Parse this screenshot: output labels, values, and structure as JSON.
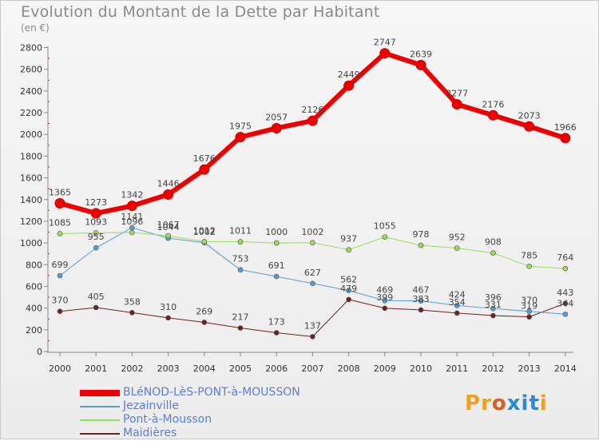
{
  "header": {
    "title": "Evolution du Montant de la Dette par Habitant",
    "unit": "(en €)"
  },
  "logo": {
    "text": "Proxiti",
    "letters": [
      "P",
      "r",
      "o",
      "x",
      "i",
      "t",
      "i"
    ],
    "colors": [
      "#f0a020",
      "#f0a020",
      "#e05a1a",
      "#2a8ad8",
      "#2a8ad8",
      "#2a8ad8",
      "#f0a020"
    ]
  },
  "chart_data": {
    "type": "line",
    "title": "Evolution du Montant de la Dette par Habitant",
    "ylabel": "(en €)",
    "xlabel": "",
    "x": [
      "2000",
      "2001",
      "2002",
      "2003",
      "2004",
      "2005",
      "2006",
      "2007",
      "2008",
      "2009",
      "2010",
      "2011",
      "2012",
      "2013",
      "2014"
    ],
    "ylim": [
      0,
      2800
    ],
    "yticks": [
      0,
      200,
      400,
      600,
      800,
      1000,
      1200,
      1400,
      1600,
      1800,
      2000,
      2200,
      2400,
      2600,
      2800
    ],
    "grid": false,
    "legend_position": "bottom-left",
    "series": [
      {
        "name": "BLéNOD-LèS-PONT-à-MOUSSON",
        "color": "#ee0000",
        "width": 6,
        "values": [
          1365,
          1273,
          1342,
          1446,
          1676,
          1975,
          2057,
          2126,
          2449,
          2747,
          2639,
          2277,
          2176,
          2073,
          1966
        ],
        "labels": [
          "1365",
          "1273",
          "1342",
          "1446",
          "1676",
          "1975",
          "2057",
          "2126",
          "2449",
          "2747",
          "2639",
          "2277",
          "2176",
          "2073",
          "1966"
        ]
      },
      {
        "name": "Jezainville",
        "color": "#5b9bd5",
        "width": 1,
        "values": [
          699,
          955,
          1141,
          1044,
          1002,
          753,
          691,
          627,
          562,
          469,
          467,
          424,
          396,
          370,
          344
        ],
        "labels": [
          "699",
          "955",
          "1141",
          "1044",
          "1002",
          "753",
          "691",
          "627",
          "562",
          "469",
          "467",
          "424",
          "396",
          "370",
          "344"
        ]
      },
      {
        "name": "Pont-à-Mousson",
        "color": "#99dd55",
        "width": 1,
        "values": [
          1085,
          1093,
          1096,
          1067,
          1012,
          1011,
          1000,
          1002,
          937,
          1055,
          978,
          952,
          908,
          785,
          764
        ],
        "labels": [
          "1085",
          "1093",
          "1096",
          "1067",
          "1012",
          "1011",
          "1000",
          "1002",
          "937",
          "1055",
          "978",
          "952",
          "908",
          "785",
          "764"
        ]
      },
      {
        "name": "Maidières",
        "color": "#702020",
        "width": 1,
        "values": [
          370,
          405,
          358,
          310,
          269,
          217,
          173,
          137,
          479,
          399,
          383,
          354,
          331,
          319,
          443
        ],
        "labels": [
          "370",
          "405",
          "358",
          "310",
          "269",
          "217",
          "173",
          "137",
          "479",
          "399",
          "383",
          "354",
          "331",
          "319",
          "443"
        ]
      }
    ]
  }
}
